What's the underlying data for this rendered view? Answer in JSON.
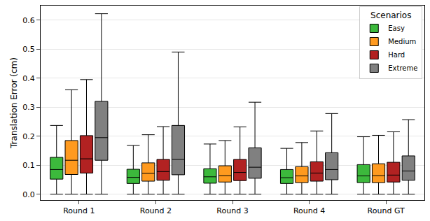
{
  "chart_data": {
    "type": "box",
    "y_label": "Translation Error (cm)",
    "legend_title": "Scenarios",
    "legend": "top right",
    "grid": true,
    "categories": [
      "Round 1",
      "Round 2",
      "Round 3",
      "Round 4",
      "Round GT"
    ],
    "ylim": [
      -0.02,
      0.65
    ],
    "yticks": [
      {
        "value": 0,
        "label": "0.0"
      },
      {
        "value": 0.1,
        "label": "0.1"
      },
      {
        "value": 0.2,
        "label": "0.2"
      },
      {
        "value": 0.3,
        "label": "0.3"
      },
      {
        "value": 0.4,
        "label": "0.4"
      },
      {
        "value": 0.5,
        "label": "0.5"
      },
      {
        "value": 0.6,
        "label": "0.6"
      }
    ],
    "series": [
      {
        "name": "Easy",
        "color": "#3cb93c",
        "line_style": "solid",
        "values": [
          {
            "min": 0,
            "q1": 0.052,
            "median": 0.085,
            "q3": 0.127,
            "max": 0.237
          },
          {
            "min": 0,
            "q1": 0.037,
            "median": 0.058,
            "q3": 0.086,
            "max": 0.168
          },
          {
            "min": 0,
            "q1": 0.038,
            "median": 0.06,
            "q3": 0.088,
            "max": 0.173
          },
          {
            "min": 0,
            "q1": 0.037,
            "median": 0.057,
            "q3": 0.085,
            "max": 0.158
          },
          null
        ]
      },
      {
        "name": "Medium",
        "color": "#ff9a1f",
        "line_style": "solid",
        "values": [
          {
            "min": 0,
            "q1": 0.068,
            "median": 0.117,
            "q3": 0.185,
            "max": 0.36
          },
          {
            "min": 0,
            "q1": 0.045,
            "median": 0.072,
            "q3": 0.108,
            "max": 0.205
          },
          {
            "min": 0,
            "q1": 0.042,
            "median": 0.064,
            "q3": 0.098,
            "max": 0.185
          },
          {
            "min": 0,
            "q1": 0.04,
            "median": 0.063,
            "q3": 0.095,
            "max": 0.178
          },
          null
        ]
      },
      {
        "name": "Hard",
        "color": "#b22222",
        "line_style": "solid",
        "values": [
          {
            "min": 0,
            "q1": 0.073,
            "median": 0.122,
            "q3": 0.202,
            "max": 0.395
          },
          {
            "min": 0,
            "q1": 0.048,
            "median": 0.078,
            "q3": 0.12,
            "max": 0.233
          },
          {
            "min": 0,
            "q1": 0.047,
            "median": 0.075,
            "q3": 0.12,
            "max": 0.232
          },
          {
            "min": 0,
            "q1": 0.045,
            "median": 0.073,
            "q3": 0.112,
            "max": 0.218
          },
          null
        ]
      },
      {
        "name": "Extreme",
        "color": "#808080",
        "line_style": "solid",
        "values": [
          {
            "min": 0,
            "q1": 0.117,
            "median": 0.195,
            "q3": 0.32,
            "max": 0.622
          },
          {
            "min": 0,
            "q1": 0.067,
            "median": 0.12,
            "q3": 0.237,
            "max": 0.49
          },
          {
            "min": 0,
            "q1": 0.055,
            "median": 0.093,
            "q3": 0.16,
            "max": 0.317
          },
          {
            "min": 0,
            "q1": 0.05,
            "median": 0.085,
            "q3": 0.143,
            "max": 0.278
          },
          null
        ]
      },
      {
        "name": "Easy",
        "color": "#3cb93c",
        "line_style": "dashed",
        "values": [
          null,
          null,
          null,
          null,
          {
            "min": 0,
            "q1": 0.04,
            "median": 0.063,
            "q3": 0.102,
            "max": 0.198
          }
        ]
      },
      {
        "name": "Medium",
        "color": "#ff9a1f",
        "line_style": "dashed",
        "values": [
          null,
          null,
          null,
          null,
          {
            "min": 0,
            "q1": 0.04,
            "median": 0.064,
            "q3": 0.105,
            "max": 0.203
          }
        ]
      },
      {
        "name": "Hard",
        "color": "#b22222",
        "line_style": "dashed",
        "values": [
          null,
          null,
          null,
          null,
          {
            "min": 0,
            "q1": 0.042,
            "median": 0.066,
            "q3": 0.11,
            "max": 0.215
          }
        ]
      },
      {
        "name": "Extreme",
        "color": "#808080",
        "line_style": "dashed",
        "values": [
          null,
          null,
          null,
          null,
          {
            "min": 0,
            "q1": 0.048,
            "median": 0.08,
            "q3": 0.132,
            "max": 0.257
          }
        ]
      }
    ]
  }
}
